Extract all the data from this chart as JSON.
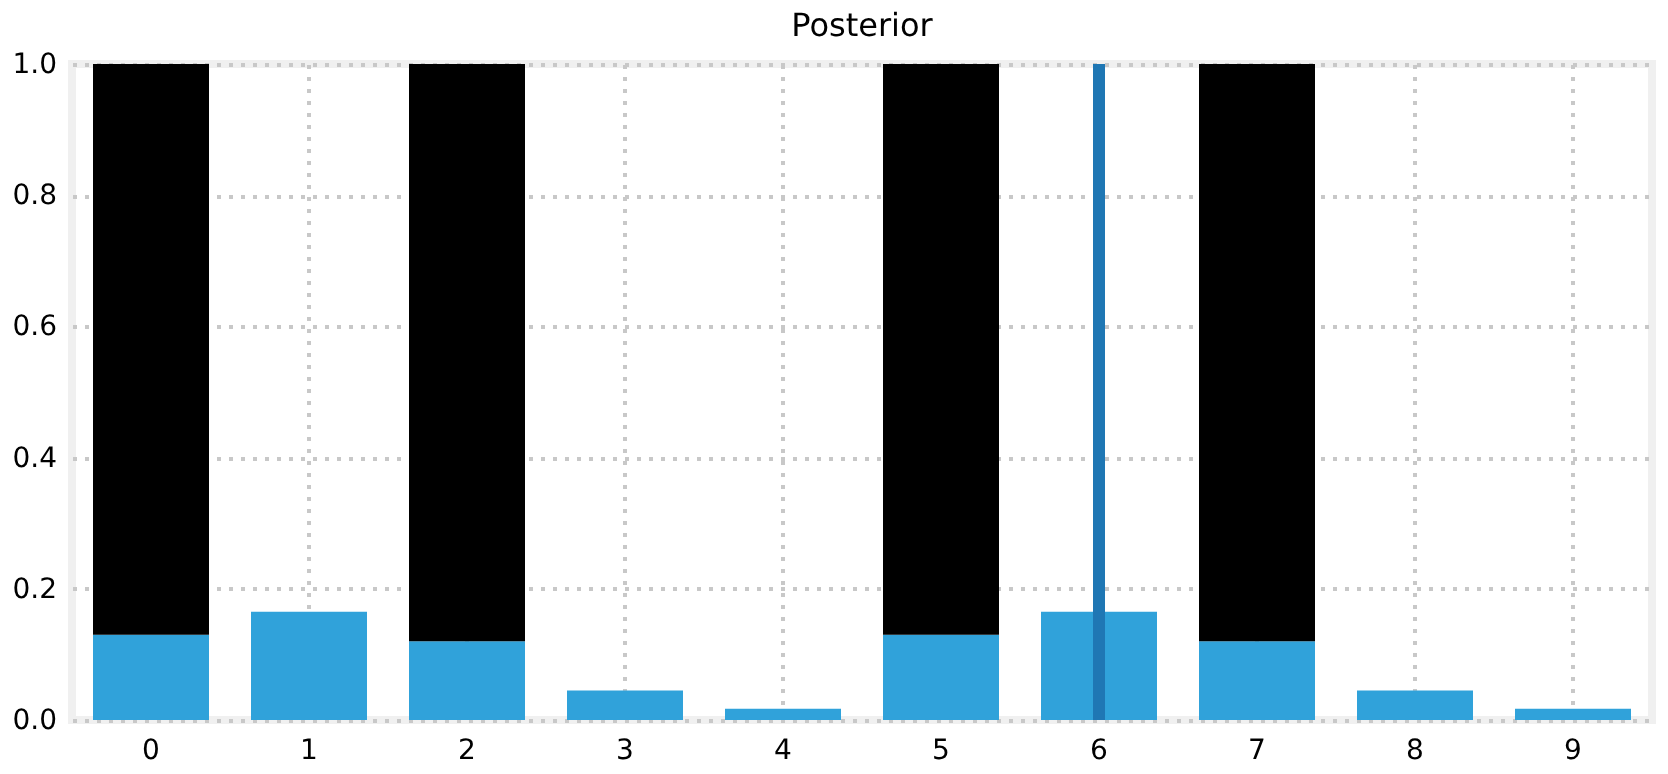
{
  "chart_data": {
    "type": "bar",
    "title": "Posterior",
    "categories": [
      "0",
      "1",
      "2",
      "3",
      "4",
      "5",
      "6",
      "7",
      "8",
      "9"
    ],
    "stacked": true,
    "series": [
      {
        "color": "#30a2da",
        "values": [
          0.13,
          0.165,
          0.12,
          0.045,
          0.017,
          0.13,
          0.165,
          0.12,
          0.045,
          0.017
        ]
      },
      {
        "color": "#000000",
        "values": [
          0.87,
          null,
          0.88,
          null,
          null,
          0.87,
          null,
          0.88,
          null,
          null
        ]
      }
    ],
    "ylim": [
      0,
      1
    ],
    "yticks": [
      {
        "value": 0,
        "label": "0.0"
      },
      {
        "value": 0.2,
        "label": "0.2"
      },
      {
        "value": 0.4,
        "label": "0.4"
      },
      {
        "value": 0.6,
        "label": "0.6"
      },
      {
        "value": 0.8,
        "label": "0.8"
      },
      {
        "value": 1,
        "label": "1.0"
      }
    ],
    "ref_lines": [
      {
        "axis": "x",
        "value": "6",
        "color": "#1f77b4"
      }
    ],
    "grid": true,
    "line_style": "dotted"
  }
}
